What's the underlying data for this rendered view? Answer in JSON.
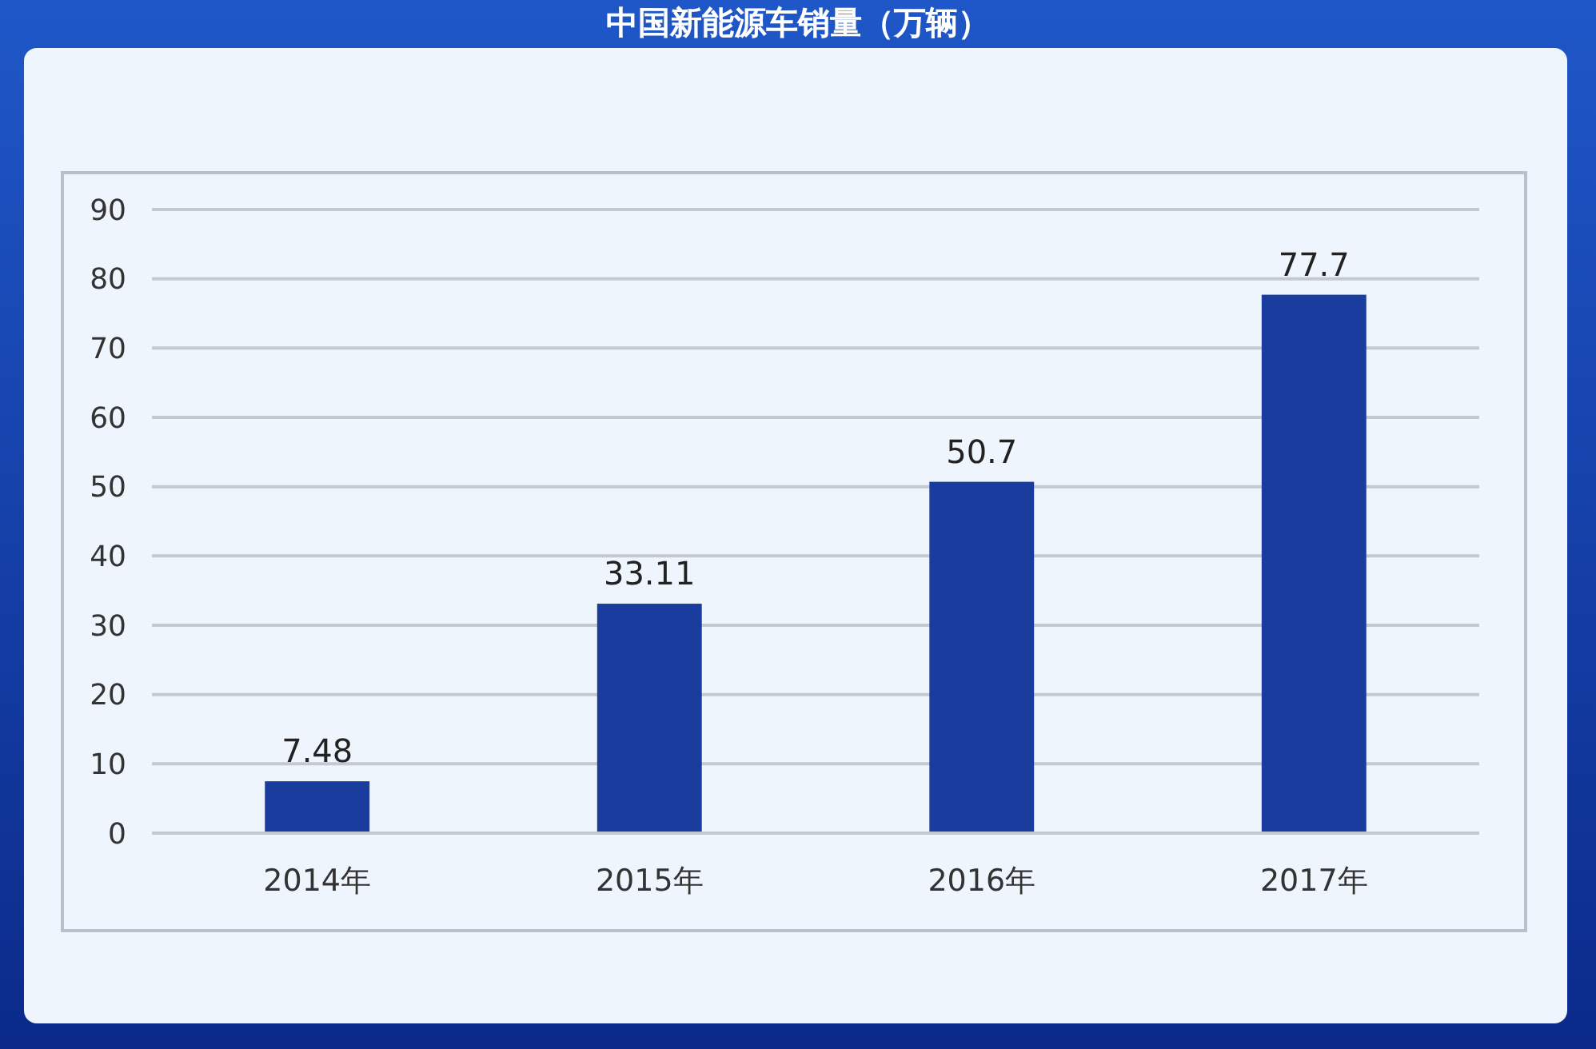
{
  "chart_data": {
    "type": "bar",
    "title": "中国新能源车销量（万辆）",
    "categories": [
      "2014年",
      "2015年",
      "2016年",
      "2017年"
    ],
    "values": [
      7.48,
      33.11,
      50.7,
      77.7
    ],
    "color": "#1a3c9e",
    "ylim": [
      0,
      90
    ],
    "yticks": [
      0,
      10,
      20,
      30,
      40,
      50,
      60,
      70,
      80,
      90
    ],
    "grid": "y",
    "data_labels": true
  }
}
